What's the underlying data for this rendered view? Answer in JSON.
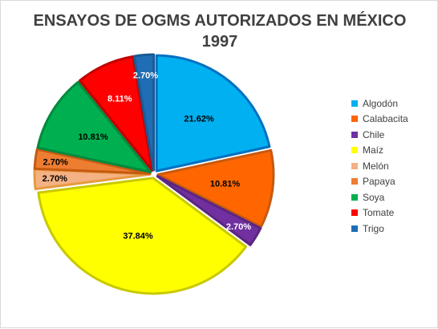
{
  "chart_data": {
    "type": "pie",
    "title_lines": [
      "ENSAYOS DE OGMS AUTORIZADOS EN MÉXICO",
      "1997"
    ],
    "slices": [
      {
        "name": "Algodón",
        "value": 21.62,
        "label": "21.62%",
        "color": "#00b0f0",
        "border": "#0070c0",
        "label_color": "#000000"
      },
      {
        "name": "Calabacita",
        "value": 10.81,
        "label": "10.81%",
        "color": "#ff6600",
        "border": "#c55a11",
        "label_color": "#000000"
      },
      {
        "name": "Chile",
        "value": 2.7,
        "label": "2.70%",
        "color": "#7030a0",
        "border": "#5b2580",
        "label_color": "#ffffff"
      },
      {
        "name": "Maíz",
        "value": 37.84,
        "label": "37.84%",
        "color": "#ffff00",
        "border": "#c9c900",
        "label_color": "#000000"
      },
      {
        "name": "Melón",
        "value": 2.7,
        "label": "2.70%",
        "color": "#f4b183",
        "border": "#e69a3c",
        "label_color": "#000000"
      },
      {
        "name": "Papaya",
        "value": 2.7,
        "label": "2.70%",
        "color": "#ed7d31",
        "border": "#c55a11",
        "label_color": "#000000"
      },
      {
        "name": "Soya",
        "value": 10.81,
        "label": "10.81%",
        "color": "#00b050",
        "border": "#008a3e",
        "label_color": "#000000"
      },
      {
        "name": "Tomate",
        "value": 8.11,
        "label": "8.11%",
        "color": "#ff0000",
        "border": "#c00000",
        "label_color": "#ffffff"
      },
      {
        "name": "Trigo",
        "value": 2.7,
        "label": "2.70%",
        "color": "#1f6eb5",
        "border": "#1a5a96",
        "label_color": "#ffffff"
      }
    ],
    "legend_position": "right",
    "start_angle_deg": 0,
    "direction": "clockwise"
  }
}
